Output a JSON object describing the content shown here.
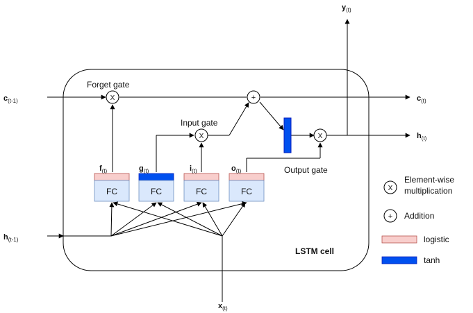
{
  "inputs": {
    "c_prev": {
      "base": "c",
      "sub": "(t-1)"
    },
    "h_prev": {
      "base": "h",
      "sub": "(t-1)"
    },
    "x_t": {
      "base": "x",
      "sub": "(t)"
    }
  },
  "outputs": {
    "c_t": {
      "base": "c",
      "sub": "(t)"
    },
    "h_t": {
      "base": "h",
      "sub": "(t)"
    },
    "y_t": {
      "base": "y",
      "sub": "(t)"
    }
  },
  "gates": {
    "forget": "Forget gate",
    "input": "Input gate",
    "output": "Output gate"
  },
  "fc_layers": [
    {
      "base": "f",
      "sub": "(t)",
      "label": "FC",
      "activation": "logistic"
    },
    {
      "base": "g",
      "sub": "(t)",
      "label": "FC",
      "activation": "tanh"
    },
    {
      "base": "i",
      "sub": "(t)",
      "label": "FC",
      "activation": "logistic"
    },
    {
      "base": "o",
      "sub": "(t)",
      "label": "FC",
      "activation": "logistic"
    }
  ],
  "operators": {
    "multiply_symbol": "X",
    "add_symbol": "+"
  },
  "cell_label": "LSTM cell",
  "legend": {
    "multiply_line1": "Element-wise",
    "multiply_line2": "multiplication",
    "addition": "Addition",
    "logistic": "logistic",
    "tanh": "tanh"
  },
  "colors": {
    "logistic": "#f8cecc",
    "tanh": "#0050ef",
    "fc_fill": "#dae8fc",
    "fc_stroke": "#6c8ebf"
  }
}
